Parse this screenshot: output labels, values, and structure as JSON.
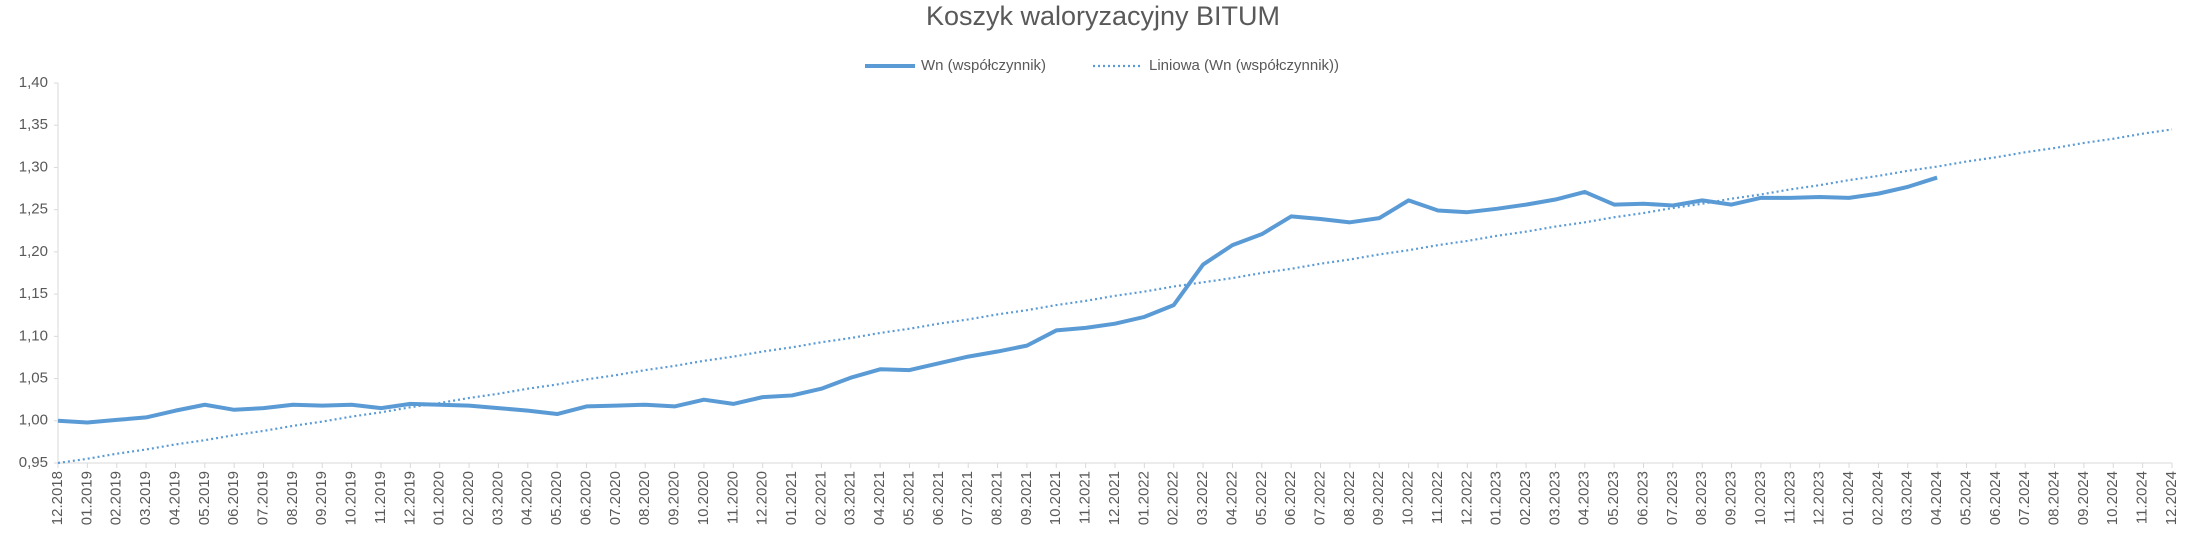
{
  "chart_data": {
    "type": "line",
    "title": "Koszyk waloryzacyjny BITUM",
    "categories": [
      "12.2018",
      "01.2019",
      "02.2019",
      "03.2019",
      "04.2019",
      "05.2019",
      "06.2019",
      "07.2019",
      "08.2019",
      "09.2019",
      "10.2019",
      "11.2019",
      "12.2019",
      "01.2020",
      "02.2020",
      "03.2020",
      "04.2020",
      "05.2020",
      "06.2020",
      "07.2020",
      "08.2020",
      "09.2020",
      "10.2020",
      "11.2020",
      "12.2020",
      "01.2021",
      "02.2021",
      "03.2021",
      "04.2021",
      "05.2021",
      "06.2021",
      "07.2021",
      "08.2021",
      "09.2021",
      "10.2021",
      "11.2021",
      "12.2021",
      "01.2022",
      "02.2022",
      "03.2022",
      "04.2022",
      "05.2022",
      "06.2022",
      "07.2022",
      "08.2022",
      "09.2022",
      "10.2022",
      "11.2022",
      "12.2022",
      "01.2023",
      "02.2023",
      "03.2023",
      "04.2023",
      "05.2023",
      "06.2023",
      "07.2023",
      "08.2023",
      "09.2023",
      "10.2023",
      "11.2023",
      "12.2023",
      "01.2024",
      "02.2024",
      "03.2024",
      "04.2024",
      "05.2024",
      "06.2024",
      "07.2024",
      "08.2024",
      "09.2024",
      "10.2024",
      "11.2024",
      "12.2024"
    ],
    "series": [
      {
        "name": "Wn (współczynnik)",
        "color": "#5b9bd5",
        "style": "solid",
        "values": [
          1.0,
          0.998,
          1.001,
          1.004,
          1.012,
          1.019,
          1.013,
          1.015,
          1.019,
          1.018,
          1.019,
          1.015,
          1.02,
          1.019,
          1.018,
          1.015,
          1.012,
          1.008,
          1.017,
          1.018,
          1.019,
          1.017,
          1.025,
          1.02,
          1.028,
          1.03,
          1.038,
          1.051,
          1.061,
          1.06,
          1.068,
          1.076,
          1.082,
          1.089,
          1.107,
          1.11,
          1.115,
          1.123,
          1.137,
          1.185,
          1.208,
          1.221,
          1.242,
          1.239,
          1.235,
          1.24,
          1.261,
          1.249,
          1.247,
          1.251,
          1.256,
          1.262,
          1.271,
          1.256,
          1.257,
          1.255,
          1.261,
          1.256,
          1.264,
          1.264,
          1.265,
          1.264,
          1.269,
          1.277,
          1.288,
          null,
          null,
          null,
          null,
          null,
          null,
          null,
          null
        ]
      },
      {
        "name": "Liniowa (Wn (współczynnik))",
        "color": "#5b9bd5",
        "style": "dotted",
        "values": [
          0.95,
          0.955,
          0.961,
          0.966,
          0.972,
          0.977,
          0.983,
          0.988,
          0.994,
          0.999,
          1.005,
          1.01,
          1.016,
          1.021,
          1.027,
          1.032,
          1.038,
          1.043,
          1.049,
          1.054,
          1.06,
          1.065,
          1.071,
          1.076,
          1.082,
          1.087,
          1.093,
          1.098,
          1.104,
          1.109,
          1.115,
          1.12,
          1.126,
          1.131,
          1.137,
          1.142,
          1.148,
          1.153,
          1.159,
          1.164,
          1.169,
          1.175,
          1.18,
          1.186,
          1.191,
          1.197,
          1.202,
          1.208,
          1.213,
          1.219,
          1.224,
          1.23,
          1.235,
          1.241,
          1.246,
          1.252,
          1.257,
          1.263,
          1.268,
          1.274,
          1.279,
          1.285,
          1.29,
          1.296,
          1.301,
          1.307,
          1.312,
          1.318,
          1.323,
          1.329,
          1.334,
          1.34,
          1.345
        ]
      }
    ],
    "ylim": [
      0.95,
      1.4
    ],
    "yticks": [
      {
        "value": 0.95,
        "label": "0,95"
      },
      {
        "value": 1.0,
        "label": "1,00"
      },
      {
        "value": 1.05,
        "label": "1,05"
      },
      {
        "value": 1.1,
        "label": "1,10"
      },
      {
        "value": 1.15,
        "label": "1,15"
      },
      {
        "value": 1.2,
        "label": "1,20"
      },
      {
        "value": 1.25,
        "label": "1,25"
      },
      {
        "value": 1.3,
        "label": "1,30"
      },
      {
        "value": 1.35,
        "label": "1,35"
      },
      {
        "value": 1.4,
        "label": "1,40"
      }
    ],
    "grid": false,
    "legend": "top"
  }
}
